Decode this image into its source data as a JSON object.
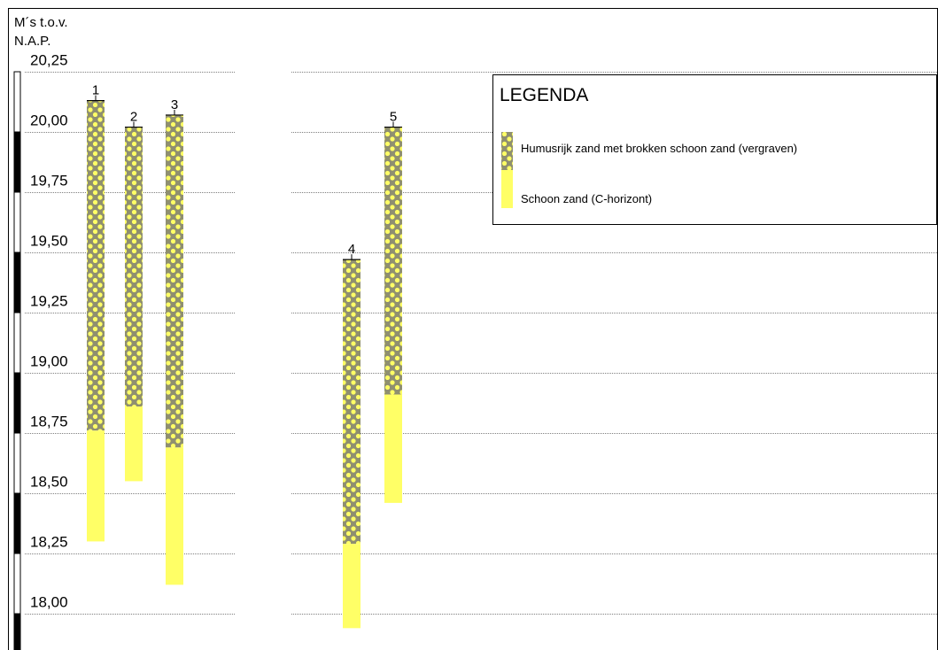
{
  "axis": {
    "title_line1": "M´s  t.o.v.",
    "title_line2": "N.A.P.",
    "levels": [
      20.25,
      20.0,
      19.75,
      19.5,
      19.25,
      19.0,
      18.75,
      18.5,
      18.25,
      18.0
    ],
    "level_labels": [
      "20,25",
      "20,00",
      "19,75",
      "19,50",
      "19,25",
      "19,00",
      "18,75",
      "18,50",
      "18,25",
      "18,00"
    ],
    "range": [
      17.85,
      20.35
    ]
  },
  "legend": {
    "title": "LEGENDA",
    "items": [
      {
        "key": "humus",
        "label": "Humusrijk zand met brokken schoon zand (vergraven)",
        "color": "#8f8f70",
        "dot_color": "#ffff66"
      },
      {
        "key": "clean",
        "label": "Schoon zand (C-horizont)",
        "color": "#ffff66"
      }
    ]
  },
  "chart_data": {
    "type": "borehole-profile",
    "y_unit": "m t.o.v. N.A.P.",
    "boreholes": [
      {
        "label": "1",
        "top": 20.13,
        "layers": [
          {
            "type": "humus",
            "top": 20.13,
            "bottom": 18.76
          },
          {
            "type": "clean",
            "top": 18.76,
            "bottom": 18.3
          }
        ]
      },
      {
        "label": "2",
        "top": 20.02,
        "layers": [
          {
            "type": "humus",
            "top": 20.02,
            "bottom": 18.86
          },
          {
            "type": "clean",
            "top": 18.86,
            "bottom": 18.55
          }
        ]
      },
      {
        "label": "3",
        "top": 20.07,
        "layers": [
          {
            "type": "humus",
            "top": 20.07,
            "bottom": 18.69
          },
          {
            "type": "clean",
            "top": 18.69,
            "bottom": 18.12
          }
        ]
      },
      {
        "label": "4",
        "top": 19.47,
        "layers": [
          {
            "type": "humus",
            "top": 19.47,
            "bottom": 18.29
          },
          {
            "type": "clean",
            "top": 18.29,
            "bottom": 17.94
          }
        ]
      },
      {
        "label": "5",
        "top": 20.02,
        "layers": [
          {
            "type": "humus",
            "top": 20.02,
            "bottom": 18.91
          },
          {
            "type": "clean",
            "top": 18.91,
            "bottom": 18.46
          }
        ]
      }
    ]
  }
}
